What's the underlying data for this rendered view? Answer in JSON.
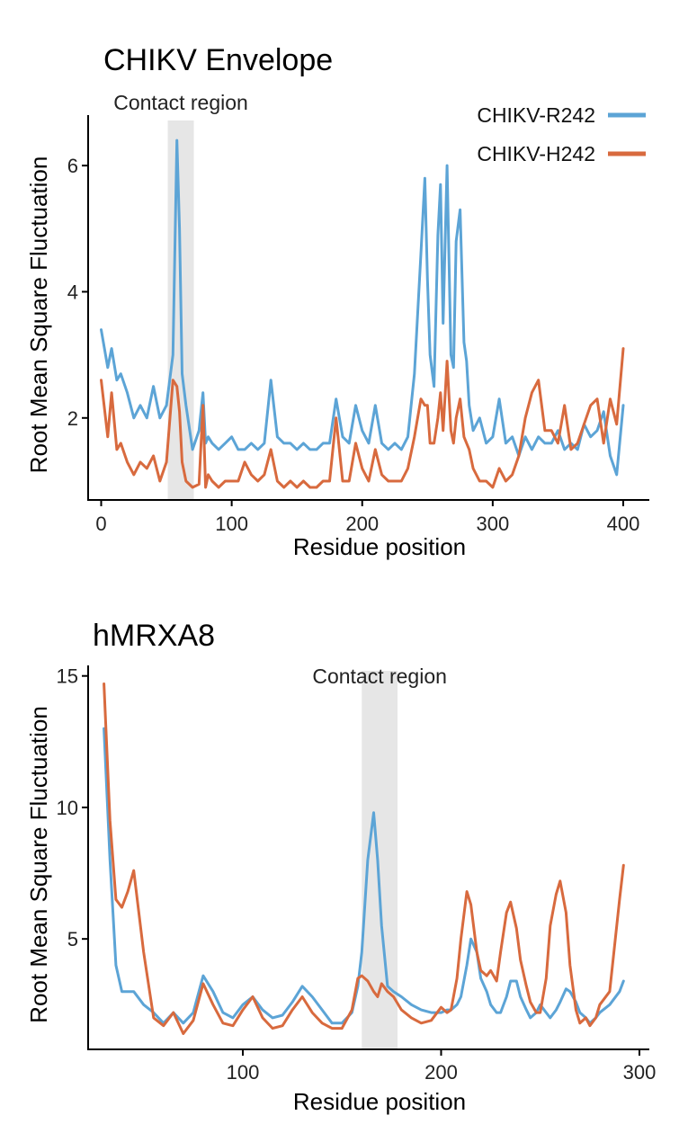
{
  "chart_data": [
    {
      "type": "line",
      "title": "CHIKV Envelope",
      "xlabel": "Residue position",
      "ylabel": "Root Mean Square Fluctuation",
      "xlim": [
        -10,
        420
      ],
      "ylim": [
        0.7,
        6.8
      ],
      "xticks": [
        0,
        100,
        200,
        300,
        400
      ],
      "yticks": [
        2,
        4,
        6
      ],
      "highlight": {
        "label": "Contact region",
        "x_range": [
          51,
          71
        ],
        "color": "#e6e6e6"
      },
      "legend_position": "top-right",
      "series": [
        {
          "name": "CHIKV-R242",
          "color": "#5ca4d6",
          "x": [
            0,
            5,
            8,
            12,
            15,
            20,
            25,
            30,
            35,
            40,
            45,
            50,
            55,
            58,
            60,
            62,
            65,
            70,
            75,
            78,
            80,
            82,
            85,
            90,
            95,
            100,
            105,
            110,
            115,
            120,
            125,
            130,
            135,
            140,
            145,
            150,
            155,
            160,
            165,
            170,
            175,
            180,
            185,
            190,
            195,
            200,
            205,
            210,
            215,
            220,
            225,
            230,
            235,
            240,
            245,
            248,
            250,
            252,
            255,
            258,
            260,
            262,
            265,
            268,
            270,
            272,
            275,
            278,
            280,
            282,
            285,
            290,
            295,
            300,
            305,
            310,
            315,
            320,
            325,
            330,
            335,
            340,
            345,
            350,
            355,
            360,
            365,
            370,
            375,
            380,
            385,
            390,
            395,
            400
          ],
          "y": [
            3.4,
            2.8,
            3.1,
            2.6,
            2.7,
            2.4,
            2.0,
            2.2,
            2.0,
            2.5,
            2.0,
            2.2,
            3.0,
            6.4,
            5.0,
            2.7,
            2.2,
            1.5,
            1.8,
            2.4,
            1.6,
            1.7,
            1.6,
            1.5,
            1.6,
            1.7,
            1.5,
            1.5,
            1.6,
            1.5,
            1.6,
            2.6,
            1.7,
            1.6,
            1.6,
            1.5,
            1.6,
            1.5,
            1.5,
            1.6,
            1.6,
            2.3,
            1.7,
            1.6,
            2.2,
            1.8,
            1.6,
            2.2,
            1.6,
            1.5,
            1.6,
            1.5,
            1.7,
            2.7,
            4.6,
            5.8,
            4.2,
            3.0,
            2.5,
            4.9,
            5.7,
            3.5,
            6.0,
            3.0,
            2.8,
            4.8,
            5.3,
            3.2,
            2.9,
            2.2,
            1.8,
            2.0,
            1.6,
            1.7,
            2.3,
            1.6,
            1.7,
            1.4,
            1.7,
            1.5,
            1.7,
            1.6,
            1.6,
            1.8,
            1.5,
            1.6,
            1.5,
            1.9,
            1.7,
            1.8,
            2.1,
            1.4,
            1.1,
            2.2
          ]
        },
        {
          "name": "CHIKV-H242",
          "color": "#d86a3e",
          "x": [
            0,
            5,
            8,
            12,
            15,
            20,
            25,
            30,
            35,
            40,
            45,
            50,
            55,
            58,
            60,
            62,
            65,
            70,
            75,
            78,
            80,
            82,
            85,
            90,
            95,
            100,
            105,
            110,
            115,
            120,
            125,
            130,
            135,
            140,
            145,
            150,
            155,
            160,
            165,
            170,
            175,
            180,
            185,
            190,
            195,
            200,
            205,
            210,
            215,
            220,
            225,
            230,
            235,
            240,
            245,
            248,
            250,
            252,
            255,
            258,
            260,
            262,
            265,
            268,
            270,
            272,
            275,
            278,
            280,
            282,
            285,
            290,
            295,
            300,
            305,
            310,
            315,
            320,
            325,
            330,
            335,
            340,
            345,
            350,
            355,
            360,
            365,
            370,
            375,
            380,
            385,
            390,
            395,
            400
          ],
          "y": [
            2.6,
            1.7,
            2.4,
            1.5,
            1.6,
            1.3,
            1.1,
            1.3,
            1.2,
            1.4,
            1.0,
            1.3,
            2.6,
            2.5,
            2.1,
            1.3,
            1.0,
            0.9,
            0.95,
            2.2,
            0.9,
            1.1,
            1.0,
            0.9,
            1.0,
            1.0,
            1.0,
            1.3,
            1.1,
            1.0,
            1.1,
            1.5,
            1.0,
            0.9,
            1.0,
            0.9,
            1.0,
            0.9,
            0.9,
            1.0,
            1.0,
            2.0,
            1.0,
            1.0,
            1.6,
            1.2,
            1.0,
            1.5,
            1.1,
            1.0,
            1.0,
            1.0,
            1.2,
            1.7,
            2.3,
            2.2,
            2.2,
            1.6,
            1.6,
            2.0,
            2.4,
            1.8,
            2.9,
            1.8,
            1.6,
            2.0,
            2.3,
            1.7,
            1.6,
            1.5,
            1.2,
            1.0,
            1.0,
            0.9,
            1.2,
            1.0,
            1.1,
            1.4,
            2.0,
            2.4,
            2.6,
            1.8,
            1.8,
            1.6,
            2.2,
            1.5,
            1.6,
            1.9,
            2.2,
            2.3,
            1.6,
            2.3,
            1.9,
            3.1
          ]
        }
      ]
    },
    {
      "type": "line",
      "title": "hMRXA8",
      "xlabel": "Residue position",
      "ylabel": "Root Mean Square Fluctuation",
      "xlim": [
        22,
        305
      ],
      "ylim": [
        0.8,
        15.4
      ],
      "xticks": [
        100,
        200,
        300
      ],
      "yticks": [
        5,
        10,
        15
      ],
      "highlight": {
        "label": "Contact region",
        "x_range": [
          160,
          178
        ],
        "color": "#e6e6e6"
      },
      "series": [
        {
          "name": "CHIKV-R242",
          "color": "#5ca4d6",
          "x": [
            30,
            33,
            36,
            39,
            42,
            45,
            50,
            55,
            60,
            65,
            70,
            75,
            80,
            85,
            90,
            95,
            100,
            105,
            110,
            115,
            120,
            125,
            130,
            135,
            140,
            145,
            150,
            155,
            158,
            160,
            163,
            166,
            168,
            170,
            173,
            176,
            180,
            185,
            190,
            195,
            200,
            203,
            205,
            208,
            210,
            213,
            215,
            218,
            220,
            223,
            225,
            228,
            230,
            233,
            235,
            238,
            240,
            243,
            245,
            248,
            250,
            253,
            255,
            258,
            260,
            263,
            265,
            268,
            270,
            273,
            275,
            278,
            280,
            285,
            290,
            292
          ],
          "y": [
            13.0,
            8.0,
            4.0,
            3.0,
            3.0,
            3.0,
            2.5,
            2.2,
            1.8,
            2.2,
            1.8,
            2.2,
            3.6,
            3.0,
            2.2,
            2.0,
            2.5,
            2.8,
            2.3,
            2.0,
            2.1,
            2.6,
            3.2,
            2.8,
            2.3,
            1.8,
            1.8,
            2.2,
            3.2,
            4.5,
            8.0,
            9.8,
            8.0,
            5.5,
            3.2,
            3.0,
            2.8,
            2.5,
            2.3,
            2.2,
            2.2,
            2.3,
            2.3,
            2.5,
            2.8,
            4.0,
            5.0,
            4.5,
            3.5,
            3.0,
            2.5,
            2.2,
            2.2,
            2.8,
            3.4,
            3.4,
            2.8,
            2.3,
            2.0,
            2.2,
            2.5,
            2.2,
            2.0,
            2.3,
            2.6,
            3.1,
            3.0,
            2.6,
            2.2,
            2.0,
            1.8,
            2.0,
            2.2,
            2.5,
            3.0,
            3.4
          ]
        },
        {
          "name": "CHIKV-H242",
          "color": "#d86a3e",
          "x": [
            30,
            33,
            36,
            39,
            42,
            45,
            50,
            55,
            60,
            65,
            70,
            75,
            80,
            85,
            90,
            95,
            100,
            105,
            110,
            115,
            120,
            125,
            130,
            135,
            140,
            145,
            150,
            155,
            158,
            160,
            163,
            166,
            168,
            170,
            173,
            176,
            180,
            185,
            190,
            195,
            200,
            203,
            205,
            208,
            210,
            213,
            215,
            218,
            220,
            223,
            225,
            228,
            230,
            233,
            235,
            238,
            240,
            243,
            245,
            248,
            250,
            253,
            255,
            258,
            260,
            263,
            265,
            268,
            270,
            273,
            275,
            278,
            280,
            285,
            290,
            292
          ],
          "y": [
            14.7,
            9.5,
            6.5,
            6.2,
            6.8,
            7.6,
            4.5,
            2.0,
            1.7,
            2.2,
            1.4,
            1.9,
            3.3,
            2.5,
            1.8,
            1.7,
            2.3,
            2.8,
            2.0,
            1.6,
            1.7,
            2.3,
            2.8,
            2.2,
            1.8,
            1.6,
            1.6,
            2.3,
            3.5,
            3.6,
            3.4,
            3.0,
            2.8,
            3.3,
            3.0,
            2.8,
            2.3,
            2.0,
            1.8,
            1.9,
            2.4,
            2.2,
            2.3,
            3.5,
            5.0,
            6.8,
            6.3,
            4.5,
            3.8,
            3.6,
            3.8,
            3.4,
            4.5,
            6.0,
            6.4,
            5.4,
            4.2,
            3.2,
            2.6,
            2.2,
            2.2,
            3.5,
            5.5,
            6.7,
            7.2,
            6.0,
            4.0,
            2.3,
            1.8,
            2.0,
            1.7,
            2.0,
            2.5,
            3.0,
            6.5,
            7.8
          ]
        }
      ]
    }
  ]
}
